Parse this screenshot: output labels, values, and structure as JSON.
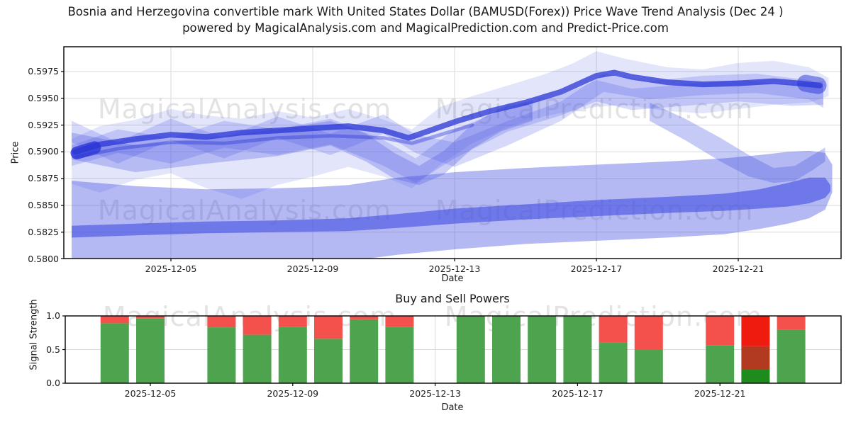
{
  "title": {
    "line1": "Bosnia and Herzegovina convertible mark With United States Dollar (BAMUSD(Forex)) Price Wave Trend Analysis (Dec 24 )",
    "line2": "powered by MagicalAnalysis.com and MagicalPrediction.com and Predict-Price.com"
  },
  "watermarks": {
    "left": "MagicalAnalysis.com",
    "right": "MagicalPrediction.com"
  },
  "colors": {
    "wave_base": "#4350e2",
    "wave_dark": "#2a35d6",
    "buy": "#4ea34e",
    "sell": "#f4514c",
    "buy_strong": "#1d8c1d",
    "sell_strong": "#ee1b0e",
    "overlap": "#b23a20",
    "grid": "#d9d9d9",
    "spine": "#000000",
    "text": "#1a1a1a"
  },
  "chart_data": [
    {
      "type": "area",
      "title": "",
      "xlabel": "Date",
      "ylabel": "Price",
      "ylim": [
        0.58,
        0.59768
      ],
      "x_start_date": "2025-12-02",
      "yticks": [
        {
          "label": "0.5800",
          "value": 0.58
        },
        {
          "label": "0.5825",
          "value": 0.5825
        },
        {
          "label": "0.5850",
          "value": 0.585
        },
        {
          "label": "0.5875",
          "value": 0.5875
        },
        {
          "label": "0.5900",
          "value": 0.59
        },
        {
          "label": "0.5925",
          "value": 0.5925
        },
        {
          "label": "0.5950",
          "value": 0.595
        },
        {
          "label": "0.5975",
          "value": 0.5975
        }
      ],
      "xticks": [
        {
          "label": "2025-12-05",
          "day": 3
        },
        {
          "label": "2025-12-09",
          "day": 7
        },
        {
          "label": "2025-12-13",
          "day": 11
        },
        {
          "label": "2025-12-17",
          "day": 15
        },
        {
          "label": "2025-12-21",
          "day": 19
        }
      ],
      "bands": [
        {
          "name": "lower-forecast-band",
          "color": "wave_base",
          "opacity": 0.4,
          "days": [
            0.2,
            2,
            4,
            6,
            7,
            8,
            9.4,
            11,
            13,
            15,
            17,
            18.6,
            19.6,
            20.4,
            21,
            21.45,
            21.65
          ],
          "top": [
            0.5873,
            0.5868,
            0.5865,
            0.5866,
            0.5867,
            0.5869,
            0.5876,
            0.5881,
            0.5885,
            0.5888,
            0.5891,
            0.5894,
            0.5897,
            0.59,
            0.5901,
            0.5899,
            0.5888
          ],
          "bot": [
            0.5797,
            0.5797,
            0.5796,
            0.5796,
            0.5796,
            0.5798,
            0.5804,
            0.5809,
            0.5814,
            0.5817,
            0.582,
            0.5823,
            0.5828,
            0.5833,
            0.5838,
            0.5846,
            0.5862
          ]
        },
        {
          "name": "lower-forecast-core",
          "color": "wave_base",
          "opacity": 0.62,
          "days": [
            0.2,
            2,
            4,
            6,
            8,
            9.4,
            11,
            13,
            15,
            17,
            18.6,
            19.6,
            20.4,
            21,
            21.45,
            21.6
          ],
          "top": [
            0.5831,
            0.5833,
            0.5835,
            0.5836,
            0.5838,
            0.5842,
            0.5847,
            0.5851,
            0.5855,
            0.5858,
            0.5861,
            0.5865,
            0.5871,
            0.5876,
            0.5876,
            0.5869
          ],
          "bot": [
            0.582,
            0.5822,
            0.5824,
            0.5825,
            0.5826,
            0.5829,
            0.5833,
            0.5837,
            0.584,
            0.5843,
            0.5845,
            0.5847,
            0.5849,
            0.5852,
            0.5857,
            0.5863
          ]
        },
        {
          "name": "upper-envelope",
          "color": "wave_base",
          "opacity": 0.15,
          "days": [
            0.2,
            1,
            2,
            3,
            4,
            5,
            6,
            7,
            8,
            9,
            9.8,
            10.6,
            11.5,
            12.5,
            13.5,
            14.3,
            15,
            15.8,
            17,
            18,
            19,
            20,
            21,
            21.55
          ],
          "top": [
            0.5912,
            0.5924,
            0.593,
            0.594,
            0.5934,
            0.5931,
            0.5938,
            0.5932,
            0.594,
            0.593,
            0.5921,
            0.5942,
            0.5952,
            0.5962,
            0.5972,
            0.5982,
            0.5994,
            0.5987,
            0.5979,
            0.5977,
            0.5983,
            0.5985,
            0.5979,
            0.5969
          ],
          "bot": [
            0.587,
            0.5862,
            0.5874,
            0.588,
            0.5866,
            0.5856,
            0.5869,
            0.5877,
            0.5886,
            0.5877,
            0.5866,
            0.5888,
            0.5908,
            0.5923,
            0.5933,
            0.5938,
            0.5942,
            0.5944,
            0.5938,
            0.5936,
            0.594,
            0.5944,
            0.5946,
            0.5952
          ]
        },
        {
          "name": "wave-a",
          "color": "wave_base",
          "opacity": 0.22,
          "days": [
            0.2,
            1.5,
            3,
            4.5,
            6,
            7.5,
            9,
            9.9,
            11,
            12.5,
            14,
            15,
            16,
            17.5,
            19,
            20.5,
            21.4
          ],
          "top": [
            0.5906,
            0.5921,
            0.5913,
            0.5929,
            0.5921,
            0.5931,
            0.5911,
            0.5894,
            0.5921,
            0.5941,
            0.5953,
            0.5967,
            0.5959,
            0.5963,
            0.5967,
            0.5963,
            0.5966
          ],
          "bot": [
            0.5887,
            0.5899,
            0.5889,
            0.5904,
            0.5897,
            0.5907,
            0.5887,
            0.5871,
            0.5894,
            0.5919,
            0.5934,
            0.5947,
            0.5939,
            0.5943,
            0.5947,
            0.5943,
            0.5944
          ]
        },
        {
          "name": "wave-b",
          "color": "wave_base",
          "opacity": 0.22,
          "days": [
            0.2,
            1.5,
            3,
            4.5,
            6,
            7.5,
            9,
            9.9,
            11,
            12.5,
            14,
            15.2,
            16.5,
            18,
            19.5,
            21,
            21.4
          ],
          "top": [
            0.5929,
            0.5909,
            0.5931,
            0.5913,
            0.5933,
            0.5917,
            0.5935,
            0.5916,
            0.5909,
            0.5929,
            0.5947,
            0.5973,
            0.5966,
            0.5971,
            0.5973,
            0.5967,
            0.5961
          ],
          "bot": [
            0.5909,
            0.5889,
            0.5911,
            0.5894,
            0.5913,
            0.5897,
            0.5917,
            0.5899,
            0.5886,
            0.5906,
            0.5929,
            0.5956,
            0.5949,
            0.5953,
            0.5955,
            0.5949,
            0.5941
          ]
        },
        {
          "name": "dip-band",
          "color": "wave_base",
          "opacity": 0.28,
          "days": [
            0.2,
            2,
            4,
            6,
            7.5,
            8.5,
            9.3,
            10,
            10.7,
            11.5,
            12.3,
            13.2
          ],
          "top": [
            0.5918,
            0.5906,
            0.5913,
            0.5921,
            0.5929,
            0.5917,
            0.5899,
            0.5887,
            0.5901,
            0.5926,
            0.5941,
            0.5948
          ],
          "bot": [
            0.5893,
            0.5881,
            0.5889,
            0.5896,
            0.5906,
            0.5891,
            0.5875,
            0.5869,
            0.5879,
            0.5903,
            0.5919,
            0.5929
          ]
        },
        {
          "name": "right-descending-band",
          "color": "wave_base",
          "opacity": 0.3,
          "days": [
            16.5,
            17.5,
            18.5,
            19.3,
            20,
            20.6,
            21.1,
            21.45
          ],
          "top": [
            0.5946,
            0.5931,
            0.5913,
            0.5897,
            0.5885,
            0.5887,
            0.5897,
            0.5904
          ],
          "bot": [
            0.5929,
            0.5911,
            0.5891,
            0.5877,
            0.5871,
            0.5873,
            0.5883,
            0.5891
          ]
        }
      ],
      "lines": [
        {
          "name": "main-trend-line",
          "color": "wave_dark",
          "opacity": 0.75,
          "width": 8,
          "pts": [
            [
              0.3,
              0.59
            ],
            [
              1,
              0.5907
            ],
            [
              2,
              0.5912
            ],
            [
              3,
              0.5916
            ],
            [
              4,
              0.5914
            ],
            [
              5,
              0.5918
            ],
            [
              6,
              0.592
            ],
            [
              7,
              0.5922
            ],
            [
              8,
              0.5924
            ],
            [
              9,
              0.592
            ],
            [
              9.7,
              0.5913
            ],
            [
              10.4,
              0.5921
            ],
            [
              11,
              0.5928
            ],
            [
              12,
              0.5938
            ],
            [
              13,
              0.5946
            ],
            [
              14,
              0.5956
            ],
            [
              15,
              0.5971
            ],
            [
              15.5,
              0.5974
            ],
            [
              16,
              0.597
            ],
            [
              17,
              0.5965
            ],
            [
              18,
              0.5963
            ],
            [
              19,
              0.5964
            ],
            [
              20,
              0.5966
            ],
            [
              20.7,
              0.5964
            ],
            [
              21.3,
              0.5962
            ]
          ]
        },
        {
          "name": "left-knot",
          "color": "wave_dark",
          "opacity": 0.8,
          "width": 18,
          "pts": [
            [
              0.35,
              0.5899
            ],
            [
              0.85,
              0.5904
            ]
          ]
        },
        {
          "name": "right-cap",
          "color": "wave_dark",
          "opacity": 0.5,
          "width": 24,
          "pts": [
            [
              20.9,
              0.5964
            ],
            [
              21.25,
              0.5962
            ]
          ]
        },
        {
          "name": "secondary-thread",
          "color": "wave_dark",
          "opacity": 0.4,
          "width": 5,
          "pts": [
            [
              0.3,
              0.5895
            ],
            [
              1.5,
              0.5903
            ],
            [
              3,
              0.5909
            ],
            [
              4.5,
              0.5908
            ],
            [
              6,
              0.5913
            ],
            [
              7.5,
              0.5915
            ],
            [
              9,
              0.5913
            ],
            [
              9.8,
              0.5908
            ],
            [
              10.6,
              0.5916
            ],
            [
              11.5,
              0.5925
            ]
          ]
        }
      ]
    },
    {
      "type": "bar",
      "title": "Buy and Sell Powers",
      "xlabel": "Date",
      "ylabel": "Signal Strength",
      "ylim": [
        0.0,
        1.0
      ],
      "yticks": [
        {
          "label": "0.0",
          "value": 0.0
        },
        {
          "label": "0.5",
          "value": 0.5
        },
        {
          "label": "1.0",
          "value": 1.0
        }
      ],
      "xticks": [
        {
          "label": "2025-12-05",
          "day": 3
        },
        {
          "label": "2025-12-09",
          "day": 7
        },
        {
          "label": "2025-12-13",
          "day": 11
        },
        {
          "label": "2025-12-17",
          "day": 15
        },
        {
          "label": "2025-12-21",
          "day": 19
        }
      ],
      "bars": [
        {
          "date": "2025-12-04",
          "day": 2,
          "buy": 0.89,
          "sell": 0.11
        },
        {
          "date": "2025-12-05",
          "day": 3,
          "buy": 0.96,
          "sell": 0.04
        },
        {
          "date": "2025-12-07",
          "day": 5,
          "buy": 0.83,
          "sell": 0.17
        },
        {
          "date": "2025-12-08",
          "day": 6,
          "buy": 0.72,
          "sell": 0.28
        },
        {
          "date": "2025-12-09",
          "day": 7,
          "buy": 0.84,
          "sell": 0.16
        },
        {
          "date": "2025-12-10",
          "day": 8,
          "buy": 0.66,
          "sell": 0.34
        },
        {
          "date": "2025-12-11",
          "day": 9,
          "buy": 0.95,
          "sell": 0.05
        },
        {
          "date": "2025-12-12",
          "day": 10,
          "buy": 0.84,
          "sell": 0.16
        },
        {
          "date": "2025-12-14",
          "day": 12,
          "buy": 1.0,
          "sell": 0.0
        },
        {
          "date": "2025-12-15",
          "day": 13,
          "buy": 1.0,
          "sell": 0.0
        },
        {
          "date": "2025-12-16",
          "day": 14,
          "buy": 1.0,
          "sell": 0.0
        },
        {
          "date": "2025-12-17",
          "day": 15,
          "buy": 1.0,
          "sell": 0.0
        },
        {
          "date": "2025-12-18",
          "day": 16,
          "buy": 0.61,
          "sell": 0.39
        },
        {
          "date": "2025-12-19",
          "day": 17,
          "buy": 0.5,
          "sell": 0.5
        },
        {
          "date": "2025-12-21",
          "day": 19,
          "buy": 0.56,
          "sell": 0.44
        },
        {
          "date": "2025-12-22",
          "day": 20,
          "segments": [
            [
              "buy_strong",
              0,
              0.21
            ],
            [
              "overlap",
              0.21,
              0.55
            ],
            [
              "sell_strong",
              0.55,
              1.0
            ]
          ]
        },
        {
          "date": "2025-12-23",
          "day": 21,
          "buy": 0.79,
          "sell": 0.21
        }
      ]
    }
  ]
}
